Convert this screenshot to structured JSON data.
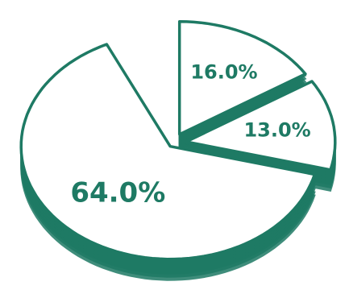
{
  "chart_data": {
    "type": "pie",
    "values": [
      16,
      13,
      64
    ],
    "value_labels": [
      "16.0%",
      "13.0%",
      "64.0%"
    ],
    "color": "#1e7a64"
  }
}
